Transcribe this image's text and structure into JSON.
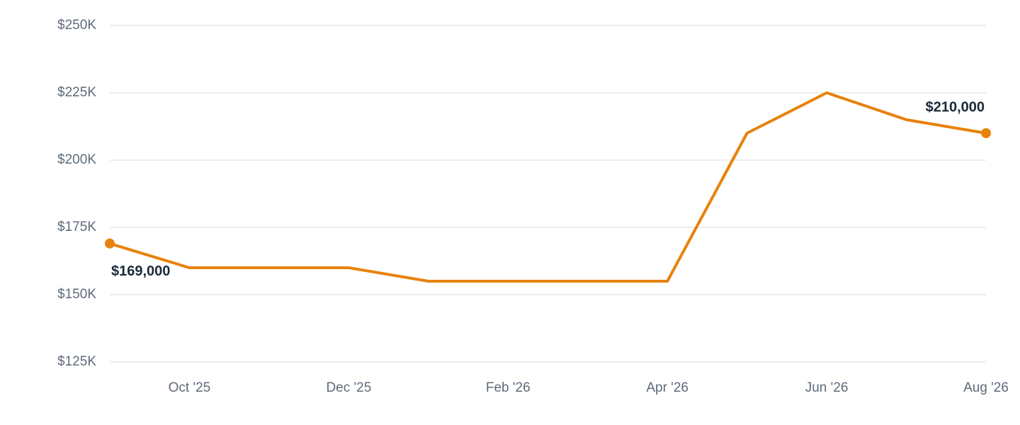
{
  "chart_data": {
    "type": "line",
    "categories": [
      null,
      "Oct '25",
      null,
      "Dec '25",
      null,
      "Feb '26",
      null,
      "Apr '26",
      null,
      "Jun '26",
      null,
      "Aug '26"
    ],
    "values": [
      169000,
      160000,
      160000,
      160000,
      155000,
      155000,
      155000,
      155000,
      210000,
      225000,
      215000,
      210000
    ],
    "value_labels": [
      "$169,000",
      null,
      null,
      null,
      null,
      null,
      null,
      null,
      null,
      null,
      null,
      "$210,000"
    ],
    "color": "#e8820c",
    "ylim": [
      125000,
      250000
    ],
    "yticks": [
      {
        "value": 125000,
        "label": "$125K"
      },
      {
        "value": 150000,
        "label": "$150K"
      },
      {
        "value": 175000,
        "label": "$175K"
      },
      {
        "value": 200000,
        "label": "$200K"
      },
      {
        "value": 225000,
        "label": "$225K"
      },
      {
        "value": 250000,
        "label": "$250K"
      }
    ],
    "grid": true
  }
}
